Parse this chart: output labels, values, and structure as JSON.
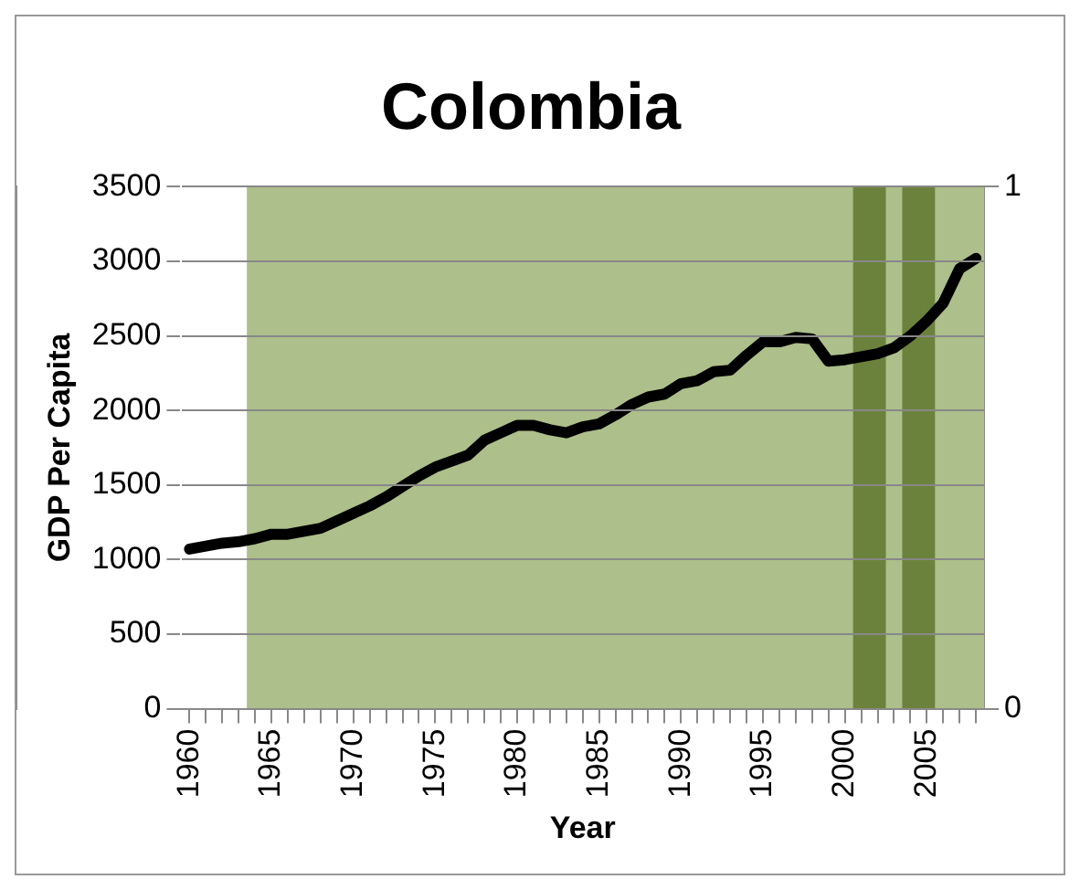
{
  "chart_data": {
    "type": "line",
    "title": "Colombia",
    "xlabel": "Year",
    "ylabel": "GDP Per Capita",
    "x": [
      1960,
      1961,
      1962,
      1963,
      1964,
      1965,
      1966,
      1967,
      1968,
      1969,
      1970,
      1971,
      1972,
      1973,
      1974,
      1975,
      1976,
      1977,
      1978,
      1979,
      1980,
      1981,
      1982,
      1983,
      1984,
      1985,
      1986,
      1987,
      1988,
      1989,
      1990,
      1991,
      1992,
      1993,
      1994,
      1995,
      1996,
      1997,
      1998,
      1999,
      2000,
      2001,
      2002,
      2003,
      2004,
      2005,
      2006,
      2007,
      2008
    ],
    "series": [
      {
        "color": "#000000",
        "values": [
          1070,
          1090,
          1110,
          1120,
          1140,
          1170,
          1170,
          1190,
          1210,
          1260,
          1310,
          1360,
          1420,
          1490,
          1560,
          1620,
          1660,
          1700,
          1800,
          1850,
          1900,
          1900,
          1870,
          1850,
          1890,
          1910,
          1970,
          2040,
          2090,
          2110,
          2180,
          2200,
          2260,
          2270,
          2370,
          2460,
          2460,
          2490,
          2480,
          2330,
          2340,
          2360,
          2380,
          2420,
          2500,
          2600,
          2720,
          2950,
          3020
        ]
      }
    ],
    "bands": [
      {
        "axis": "x",
        "from": 1963.5,
        "to": 2008.5,
        "color": "#adbf8a"
      },
      {
        "axis": "x",
        "from": 2000.5,
        "to": 2002.5,
        "color": "#6b823c"
      },
      {
        "axis": "x",
        "from": 2003.5,
        "to": 2005.5,
        "color": "#6b823c"
      }
    ],
    "xlim": [
      1959.5,
      2008.5
    ],
    "xticks": [
      1960,
      {
        "value": 1961,
        "label": null
      },
      {
        "value": 1962,
        "label": null
      },
      {
        "value": 1963,
        "label": null
      },
      {
        "value": 1964,
        "label": null
      },
      1965,
      {
        "value": 1966,
        "label": null
      },
      {
        "value": 1967,
        "label": null
      },
      {
        "value": 1968,
        "label": null
      },
      {
        "value": 1969,
        "label": null
      },
      1970,
      {
        "value": 1971,
        "label": null
      },
      {
        "value": 1972,
        "label": null
      },
      {
        "value": 1973,
        "label": null
      },
      {
        "value": 1974,
        "label": null
      },
      1975,
      {
        "value": 1976,
        "label": null
      },
      {
        "value": 1977,
        "label": null
      },
      {
        "value": 1978,
        "label": null
      },
      {
        "value": 1979,
        "label": null
      },
      1980,
      {
        "value": 1981,
        "label": null
      },
      {
        "value": 1982,
        "label": null
      },
      {
        "value": 1983,
        "label": null
      },
      {
        "value": 1984,
        "label": null
      },
      1985,
      {
        "value": 1986,
        "label": null
      },
      {
        "value": 1987,
        "label": null
      },
      {
        "value": 1988,
        "label": null
      },
      {
        "value": 1989,
        "label": null
      },
      1990,
      {
        "value": 1991,
        "label": null
      },
      {
        "value": 1992,
        "label": null
      },
      {
        "value": 1993,
        "label": null
      },
      {
        "value": 1994,
        "label": null
      },
      1995,
      {
        "value": 1996,
        "label": null
      },
      {
        "value": 1997,
        "label": null
      },
      {
        "value": 1998,
        "label": null
      },
      {
        "value": 1999,
        "label": null
      },
      2000,
      {
        "value": 2001,
        "label": null
      },
      {
        "value": 2002,
        "label": null
      },
      {
        "value": 2003,
        "label": null
      },
      {
        "value": 2004,
        "label": null
      },
      2005,
      {
        "value": 2006,
        "label": null
      },
      {
        "value": 2007,
        "label": null
      },
      {
        "value": 2008,
        "label": null
      }
    ],
    "ylim": [
      0,
      3500
    ],
    "yticks": [
      0,
      500,
      1000,
      1500,
      2000,
      2500,
      3000,
      3500
    ],
    "y2lim": [
      0,
      1
    ],
    "y2ticks": [
      0,
      1
    ],
    "grid": "y",
    "legend": false
  }
}
